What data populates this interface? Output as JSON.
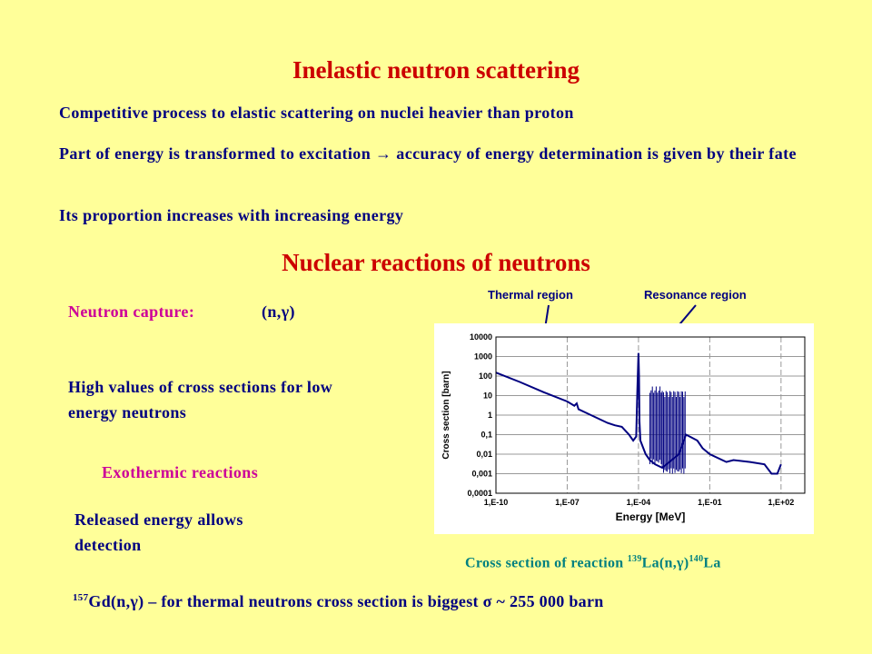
{
  "slide": {
    "title1": "Inelastic neutron scattering",
    "line1": "Competitive process to elastic scattering on nuclei heavier than proton",
    "line2": "Part of energy is transformed to excitation → accuracy of energy determination is given by their fate",
    "line3": "Its proportion increases with increasing energy",
    "title2": "Nuclear reactions of neutrons",
    "capture_label": "Neutron capture:",
    "capture_formula": "(n,γ)",
    "high_values": "High values of cross sections for low energy neutrons",
    "exothermic": "Exothermic reactions",
    "released": "Released energy allows detection",
    "caption_prefix": "Cross section of reaction ",
    "caption_sup1": "139",
    "caption_mid": "La(n,γ)",
    "caption_sup2": "140",
    "caption_end": "La",
    "gd_sup": "157",
    "gd_text": "Gd(n,γ) – for thermal neutrons cross section is  biggest σ ~ 255 000 barn"
  },
  "annotations": {
    "thermal": "Thermal region",
    "resonance": "Resonance region"
  },
  "colors": {
    "background": "#FFFF99",
    "title": "#CC0000",
    "text": "#000080",
    "accent": "#CC0099",
    "caption": "#008080",
    "series": "#000080"
  },
  "chart_data": {
    "type": "line",
    "title": "",
    "xlabel": "Energy [MeV]",
    "ylabel": "Cross section [barn]",
    "x_scale": "log",
    "y_scale": "log",
    "xlim": [
      1e-10,
      1000.0
    ],
    "ylim": [
      0.0001,
      10000
    ],
    "x_ticks": [
      "1,E-10",
      "1,E-07",
      "1,E-04",
      "1,E-01",
      "1,E+02"
    ],
    "y_ticks": [
      "0,0001",
      "0,001",
      "0,01",
      "0,1",
      "1",
      "10",
      "100",
      "1000",
      "10000"
    ],
    "grid": true,
    "series": [
      {
        "name": "",
        "x": [
          1e-10,
          1e-09,
          1e-08,
          1e-07,
          2e-07,
          2.5e-07,
          3e-07,
          1e-06,
          5e-06,
          1e-05,
          2e-05,
          4e-05,
          6e-05,
          8e-05,
          9e-05,
          0.0001,
          0.000105,
          0.00011,
          0.00012,
          0.0002,
          0.0003,
          0.0005,
          0.001,
          0.005,
          0.01,
          0.03,
          0.05,
          0.1,
          0.5,
          1,
          5,
          20,
          40,
          70,
          100
        ],
        "y": [
          150,
          50,
          15,
          5,
          3,
          4,
          2,
          1,
          0.4,
          0.3,
          0.25,
          0.1,
          0.05,
          0.08,
          20,
          1500,
          100,
          0.5,
          0.05,
          0.01,
          0.005,
          0.003,
          0.002,
          0.01,
          0.1,
          0.05,
          0.02,
          0.01,
          0.004,
          0.005,
          0.004,
          0.003,
          0.001,
          0.001,
          0.003
        ]
      }
    ],
    "resonance_bands": [
      {
        "x_range": [
          0.0003,
          0.001
        ],
        "y_range": [
          0.003,
          30
        ]
      },
      {
        "x_range": [
          0.001,
          0.01
        ],
        "y_range": [
          0.001,
          20
        ]
      }
    ]
  }
}
